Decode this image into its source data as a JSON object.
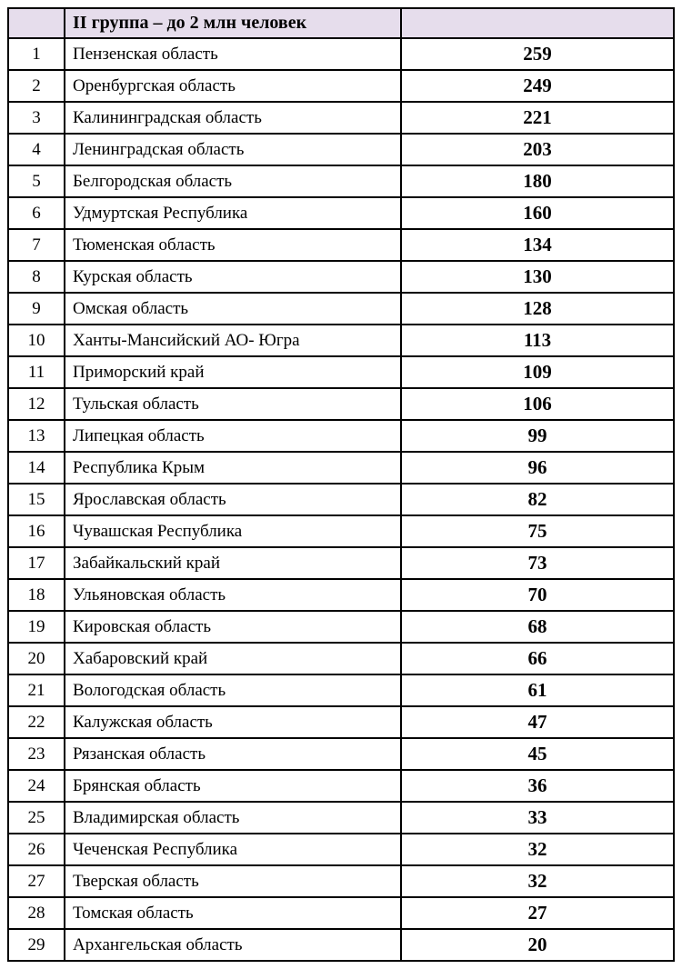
{
  "table": {
    "header_title": "II группа – до 2 млн человек",
    "header_bg_color": "#e6ddec",
    "border_color": "#000000",
    "font_family": "Times New Roman",
    "num_fontsize": 19,
    "name_fontsize": 19,
    "value_fontsize": 21,
    "value_fontweight": "bold",
    "rows": [
      {
        "num": "1",
        "name": "Пензенская область",
        "value": "259"
      },
      {
        "num": "2",
        "name": "Оренбургская область",
        "value": "249"
      },
      {
        "num": "3",
        "name": "Калининградская область",
        "value": "221"
      },
      {
        "num": "4",
        "name": "Ленинградская область",
        "value": "203"
      },
      {
        "num": "5",
        "name": "Белгородская область",
        "value": "180"
      },
      {
        "num": "6",
        "name": "Удмуртская Республика",
        "value": "160"
      },
      {
        "num": "7",
        "name": "Тюменская область",
        "value": "134"
      },
      {
        "num": "8",
        "name": "Курская область",
        "value": "130"
      },
      {
        "num": "9",
        "name": "Омская область",
        "value": "128"
      },
      {
        "num": "10",
        "name": "Ханты-Мансийский АО- Югра",
        "value": "113"
      },
      {
        "num": "11",
        "name": "Приморский край",
        "value": "109"
      },
      {
        "num": "12",
        "name": "Тульская область",
        "value": "106"
      },
      {
        "num": "13",
        "name": "Липецкая область",
        "value": "99"
      },
      {
        "num": "14",
        "name": "Республика Крым",
        "value": "96"
      },
      {
        "num": "15",
        "name": "Ярославская область",
        "value": "82"
      },
      {
        "num": "16",
        "name": "Чувашская Республика",
        "value": "75"
      },
      {
        "num": "17",
        "name": "Забайкальский край",
        "value": "73"
      },
      {
        "num": "18",
        "name": "Ульяновская область",
        "value": "70"
      },
      {
        "num": "19",
        "name": "Кировская область",
        "value": "68"
      },
      {
        "num": "20",
        "name": "Хабаровский край",
        "value": "66"
      },
      {
        "num": "21",
        "name": "Вологодская область",
        "value": "61"
      },
      {
        "num": "22",
        "name": "Калужская область",
        "value": "47"
      },
      {
        "num": "23",
        "name": "Рязанская область",
        "value": "45"
      },
      {
        "num": "24",
        "name": "Брянская область",
        "value": "36"
      },
      {
        "num": "25",
        "name": "Владимирская область",
        "value": "33"
      },
      {
        "num": "26",
        "name": "Чеченская Республика",
        "value": "32"
      },
      {
        "num": "27",
        "name": "Тверская область",
        "value": "32"
      },
      {
        "num": "28",
        "name": "Томская область",
        "value": "27"
      },
      {
        "num": "29",
        "name": "Архангельская область",
        "value": "20"
      }
    ]
  }
}
